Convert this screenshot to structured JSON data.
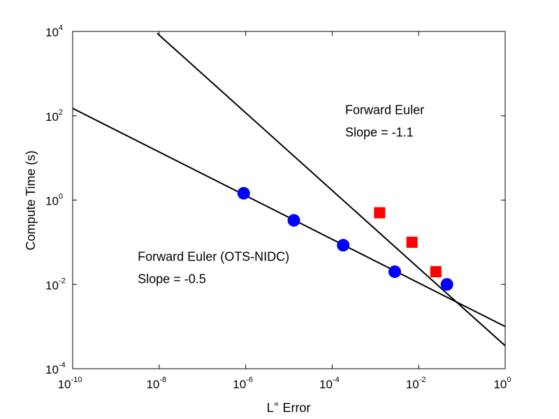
{
  "chart_data": {
    "type": "scatter",
    "xscale": "log",
    "yscale": "log",
    "xlim": [
      1e-10,
      1
    ],
    "ylim": [
      0.0001,
      10000.0
    ],
    "xlabel": {
      "base": "L",
      "sup": "∝",
      "rest": " Error"
    },
    "ylabel": "Compute Time (s)",
    "x_ticks": [
      {
        "value": 1e-10,
        "base": "10",
        "exp": "-10"
      },
      {
        "value": 1e-08,
        "base": "10",
        "exp": "-8"
      },
      {
        "value": 1e-06,
        "base": "10",
        "exp": "-6"
      },
      {
        "value": 0.0001,
        "base": "10",
        "exp": "-4"
      },
      {
        "value": 0.01,
        "base": "10",
        "exp": "-2"
      },
      {
        "value": 1,
        "base": "10",
        "exp": "0"
      }
    ],
    "y_ticks": [
      {
        "value": 0.0001,
        "base": "10",
        "exp": "-4"
      },
      {
        "value": 0.01,
        "base": "10",
        "exp": "-2"
      },
      {
        "value": 1,
        "base": "10",
        "exp": "0"
      },
      {
        "value": 100.0,
        "base": "10",
        "exp": "2"
      },
      {
        "value": 10000.0,
        "base": "10",
        "exp": "4"
      }
    ],
    "series": [
      {
        "marker": "circle",
        "color": "#0000ff",
        "points": [
          {
            "x": 9e-07,
            "y": 1.45
          },
          {
            "x": 1.3e-05,
            "y": 0.33
          },
          {
            "x": 0.00018,
            "y": 0.085
          },
          {
            "x": 0.0028,
            "y": 0.02
          },
          {
            "x": 0.045,
            "y": 0.01
          }
        ],
        "fit": {
          "x": [
            1e-10,
            1
          ],
          "y": [
            150,
            0.001
          ]
        }
      },
      {
        "marker": "square",
        "color": "#ff0000",
        "points": [
          {
            "x": 0.00125,
            "y": 0.5
          },
          {
            "x": 0.007,
            "y": 0.1
          },
          {
            "x": 0.025,
            "y": 0.02
          }
        ],
        "fit": {
          "x": [
            9e-09,
            1
          ],
          "y": [
            9000,
            0.00035
          ]
        }
      }
    ],
    "annotations": [
      {
        "lines": [
          "Forward Euler",
          "Slope = -1.1"
        ],
        "x": 0.0002,
        "y": 110
      },
      {
        "lines": [
          "Forward Euler (OTS-NIDC)",
          "Slope = -0.5"
        ],
        "x": 3.2e-09,
        "y": 0.036
      }
    ]
  }
}
